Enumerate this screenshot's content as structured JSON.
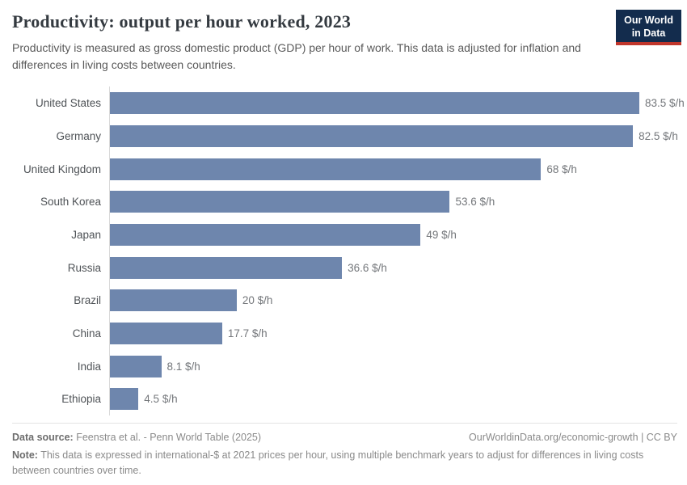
{
  "header": {
    "title": "Productivity: output per hour worked, 2023",
    "subtitle": "Productivity is measured as gross domestic product (GDP) per hour of work. This data is adjusted for inflation and differences in living costs between countries.",
    "logo": {
      "line1": "Our World",
      "line2": "in Data",
      "bg_color": "#132c4d",
      "stripe_color": "#c0362c"
    }
  },
  "chart_data": {
    "type": "bar",
    "orientation": "horizontal",
    "title": "Productivity: output per hour worked, 2023",
    "xlabel": "",
    "ylabel": "",
    "unit": "$/h",
    "xlim": [
      0,
      83.5
    ],
    "grid": false,
    "legend": false,
    "bar_color": "#6e86ad",
    "categories": [
      "United States",
      "Germany",
      "United Kingdom",
      "South Korea",
      "Japan",
      "Russia",
      "Brazil",
      "China",
      "India",
      "Ethiopia"
    ],
    "values": [
      83.5,
      82.5,
      68,
      53.6,
      49,
      36.6,
      20,
      17.7,
      8.1,
      4.5
    ],
    "value_labels": [
      "83.5 $/h",
      "82.5 $/h",
      "68 $/h",
      "53.6 $/h",
      "49 $/h",
      "36.6 $/h",
      "20 $/h",
      "17.7 $/h",
      "8.1 $/h",
      "4.5 $/h"
    ]
  },
  "footer": {
    "datasource_label": "Data source:",
    "datasource_text": " Feenstra et al. - Penn World Table (2025)",
    "link": "OurWorldinData.org/economic-growth | CC BY",
    "note_label": "Note:",
    "note_text": " This data is expressed in international-$ at 2021 prices per hour, using multiple benchmark years to adjust for differences in living costs between countries over time."
  },
  "colors": {
    "bar": "#6e86ad",
    "title": "#343a40",
    "axis_line": "#d9d9d9",
    "logo_bg": "#132c4d",
    "logo_stripe": "#c0362c"
  }
}
